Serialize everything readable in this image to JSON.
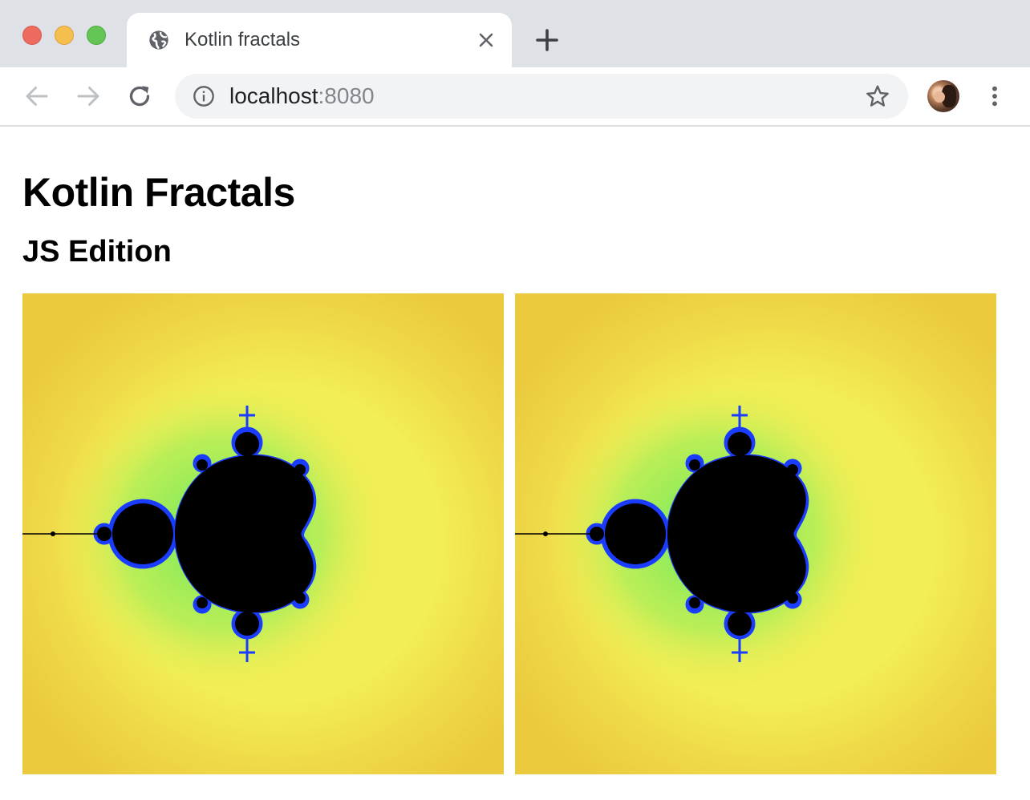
{
  "window": {
    "controls": [
      "close",
      "minimize",
      "maximize"
    ],
    "colors": {
      "close": "#ed6a5e",
      "minimize": "#f5bf4f",
      "maximize": "#62c554"
    }
  },
  "tab": {
    "icon": "globe-icon",
    "title": "Kotlin fractals",
    "close_icon": "close-icon"
  },
  "new_tab_icon": "plus-icon",
  "toolbar": {
    "back_icon": "arrow-left-icon",
    "forward_icon": "arrow-right-icon",
    "reload_icon": "reload-icon",
    "site_info_icon": "info-icon",
    "url_host": "localhost",
    "url_port": ":8080",
    "bookmark_icon": "star-icon",
    "menu_icon": "kebab-menu-icon"
  },
  "page": {
    "title": "Kotlin Fractals",
    "subtitle": "JS Edition",
    "canvases": [
      {
        "name": "Mandelbrot set"
      },
      {
        "name": "Mandelbrot set"
      }
    ],
    "fractal_colors": {
      "set": "#000000",
      "edge": "#1a3cff",
      "halo": "#5ee85c",
      "field": "#f2ee55",
      "outer": "#ebca3e"
    }
  }
}
